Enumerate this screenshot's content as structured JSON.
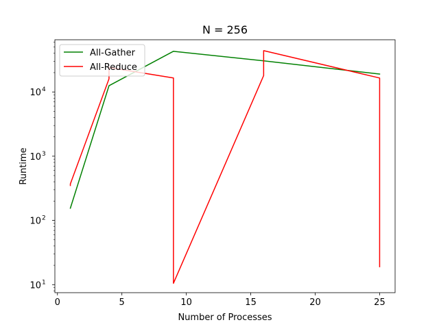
{
  "chart_data": {
    "type": "line",
    "title": "N = 256",
    "xlabel": "Number of Processes",
    "ylabel": "Runtime",
    "xlim": [
      -0.2,
      26.2
    ],
    "ylim": [
      7.5,
      65000
    ],
    "yscale": "log",
    "grid": false,
    "legend_position": "top-left",
    "x_ticks": [
      0,
      5,
      10,
      15,
      20,
      25
    ],
    "x_tick_labels": [
      "0",
      "5",
      "10",
      "15",
      "20",
      "25"
    ],
    "y_ticks": [
      10,
      100,
      1000,
      10000
    ],
    "y_tick_labels": [
      {
        "base": "10",
        "exp": "1"
      },
      {
        "base": "10",
        "exp": "2"
      },
      {
        "base": "10",
        "exp": "3"
      },
      {
        "base": "10",
        "exp": "4"
      }
    ],
    "series": [
      {
        "name": "All-Gather",
        "color": "#008000",
        "points": [
          [
            1,
            155
          ],
          [
            4,
            12500
          ],
          [
            9,
            43000
          ],
          [
            16,
            30500
          ],
          [
            25,
            19000
          ]
        ]
      },
      {
        "name": "All-Reduce",
        "color": "#ff0000",
        "points": [
          [
            1,
            350
          ],
          [
            1,
            370
          ],
          [
            4,
            16000
          ],
          [
            4,
            24000
          ],
          [
            9,
            16500
          ],
          [
            9,
            10.5
          ],
          [
            16,
            18000
          ],
          [
            16,
            44000
          ],
          [
            25,
            16500
          ],
          [
            25,
            19
          ]
        ]
      }
    ]
  }
}
